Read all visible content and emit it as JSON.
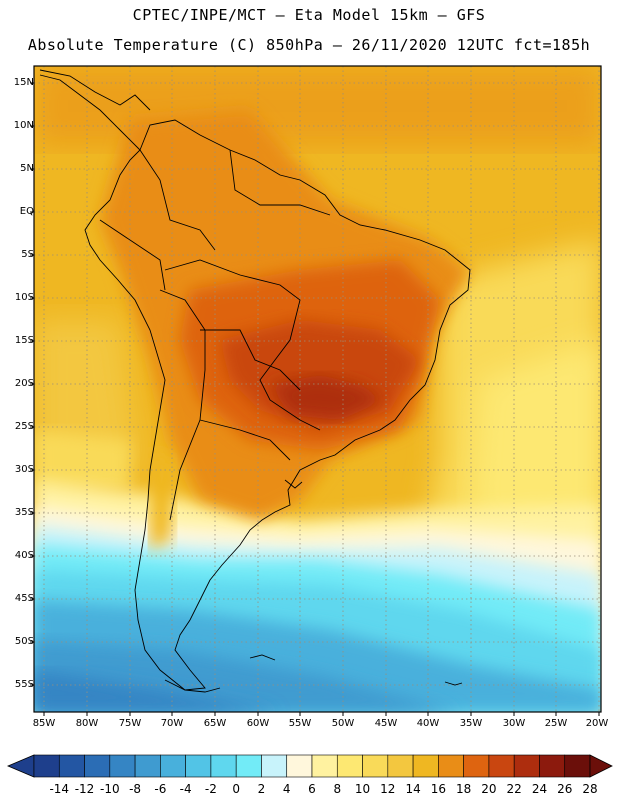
{
  "title_line1": "CPTEC/INPE/MCT –  Eta Model 15km – GFS",
  "title_line2": "Absolute Temperature (C) 850hPa – 26/11/2020 12UTC fct=185h",
  "lat_labels": [
    "15N",
    "10N",
    "5N",
    "EQ",
    "5S",
    "10S",
    "15S",
    "20S",
    "25S",
    "30S",
    "35S",
    "40S",
    "45S",
    "50S",
    "55S"
  ],
  "lon_labels": [
    "85W",
    "80W",
    "75W",
    "70W",
    "65W",
    "60W",
    "55W",
    "50W",
    "45W",
    "40W",
    "35W",
    "30W",
    "25W",
    "20W"
  ],
  "colorbar": {
    "labels": [
      "-14",
      "-12",
      "-10",
      "-8",
      "-6",
      "-4",
      "-2",
      "0",
      "2",
      "4",
      "6",
      "8",
      "10",
      "12",
      "14",
      "16",
      "18",
      "20",
      "22",
      "24",
      "26",
      "28"
    ],
    "colors": [
      "#1e3f8c",
      "#2356a3",
      "#2b6db5",
      "#3585c4",
      "#3f9bd0",
      "#48b0dc",
      "#52c4e6",
      "#5fd7ee",
      "#72ebf7",
      "#c8f3fb",
      "#fff7dc",
      "#fff2a0",
      "#fde872",
      "#f9da59",
      "#f3c73f",
      "#efb722",
      "#e98d17",
      "#de6410",
      "#c94610",
      "#ad2d0e",
      "#8c1a0d",
      "#6b0f0a"
    ]
  }
}
